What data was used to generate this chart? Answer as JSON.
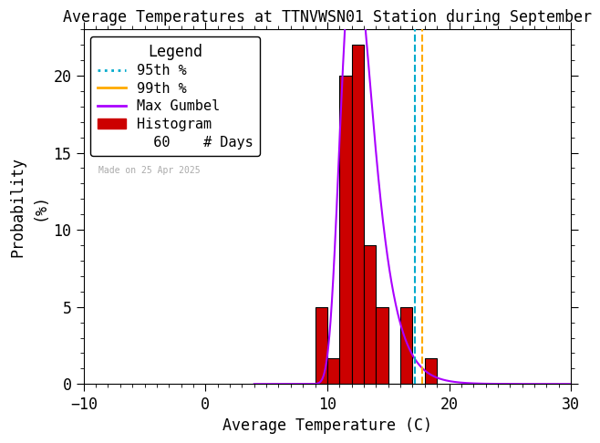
{
  "title": "Average Temperatures at TTNVWSN01 Station during September",
  "xlabel": "Average Temperature (C)",
  "ylabel_line1": "Probability",
  "ylabel_line2": "(%)",
  "xlim": [
    -10,
    30
  ],
  "ylim": [
    0,
    23
  ],
  "yticks": [
    0,
    5,
    10,
    15,
    20
  ],
  "xticks": [
    -10,
    0,
    10,
    20,
    30
  ],
  "bin_edges": [
    9,
    10,
    11,
    12,
    13,
    14,
    15,
    16,
    17,
    18,
    19
  ],
  "bin_heights": [
    5.0,
    1.67,
    20.0,
    22.0,
    9.0,
    5.0,
    0.0,
    5.0,
    0.0,
    1.67
  ],
  "bar_color": "#cc0000",
  "bar_edgecolor": "#000000",
  "gumbel_color": "#aa00ff",
  "percentile_95_x": 17.2,
  "percentile_99_x": 17.8,
  "percentile_95_color": "#00aacc",
  "percentile_99_color": "#ffaa00",
  "gumbel_mu": 12.2,
  "gumbel_beta": 1.3,
  "n_days": 60,
  "watermark": "Made on 25 Apr 2025",
  "watermark_color": "#aaaaaa",
  "background_color": "#ffffff",
  "font_size": 12,
  "title_font_size": 12
}
